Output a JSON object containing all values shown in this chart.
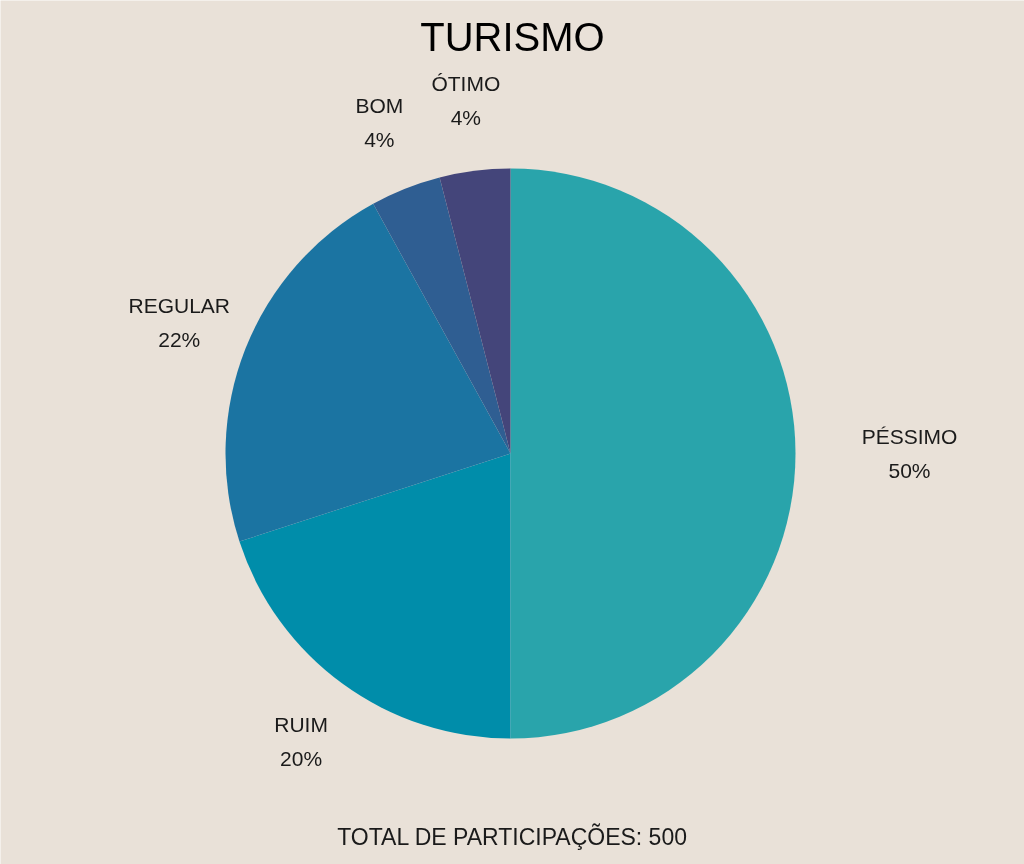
{
  "chart_data": {
    "type": "pie",
    "title": "TURISMO",
    "categories": [
      "PÉSSIMO",
      "RUIM",
      "REGULAR",
      "BOM",
      "ÓTIMO"
    ],
    "values": [
      50,
      20,
      22,
      4,
      4
    ],
    "colors": [
      "#29a4ab",
      "#008daa",
      "#1b74a2",
      "#2f5e92",
      "#44457a"
    ],
    "value_labels": [
      "50%",
      "20%",
      "22%",
      "4%",
      "4%"
    ],
    "annotations": [
      "TOTAL DE PARTICIPAÇÕES: 500"
    ]
  }
}
